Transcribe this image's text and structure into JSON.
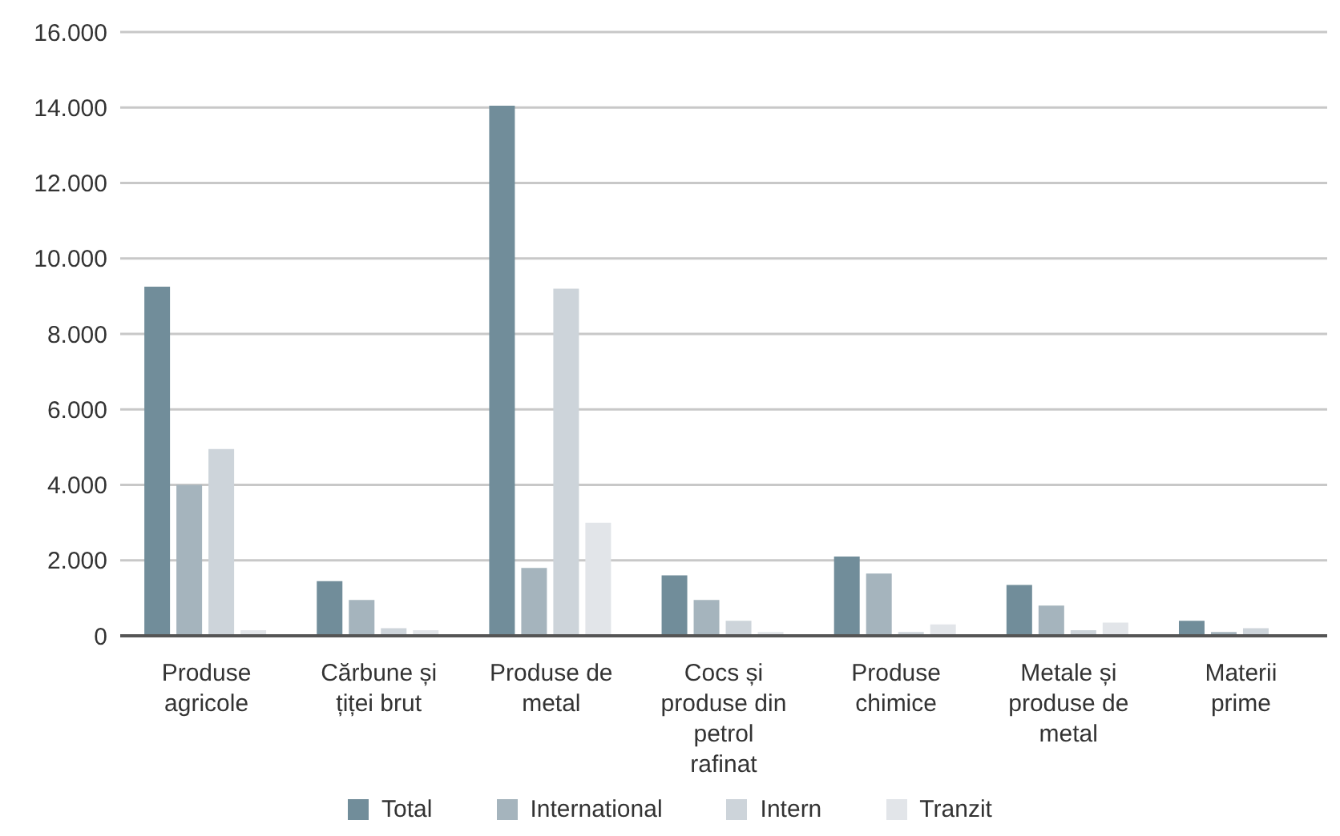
{
  "chart_data": {
    "type": "bar",
    "categories": [
      "Produse agricole",
      "Cărbune și țiței brut",
      "Produse de metal",
      "Cocs și produse din petrol rafinat",
      "Produse chimice",
      "Metale și produse de metal",
      "Materii prime"
    ],
    "series": [
      {
        "name": "Total",
        "color": "#718d9a",
        "values": [
          9250,
          1450,
          14050,
          1600,
          2100,
          1350,
          400
        ]
      },
      {
        "name": "International",
        "color": "#a5b4bd",
        "values": [
          4000,
          950,
          1800,
          950,
          1650,
          800,
          100
        ]
      },
      {
        "name": "Intern",
        "color": "#cdd4da",
        "values": [
          4950,
          200,
          9200,
          400,
          100,
          150,
          200
        ]
      },
      {
        "name": "Tranzit",
        "color": "#e2e5e9",
        "values": [
          150,
          150,
          3000,
          100,
          300,
          350,
          30
        ]
      }
    ],
    "ylim": [
      0,
      16000
    ],
    "yticks": [
      {
        "value": 0,
        "label": "0"
      },
      {
        "value": 2000,
        "label": "2.000"
      },
      {
        "value": 4000,
        "label": "4.000"
      },
      {
        "value": 6000,
        "label": "6.000"
      },
      {
        "value": 8000,
        "label": "8.000"
      },
      {
        "value": 10000,
        "label": "10.000"
      },
      {
        "value": 12000,
        "label": "12.000"
      },
      {
        "value": 14000,
        "label": "14.000"
      },
      {
        "value": 16000,
        "label": "16.000"
      }
    ],
    "grid": "y",
    "legend": "bottom"
  }
}
